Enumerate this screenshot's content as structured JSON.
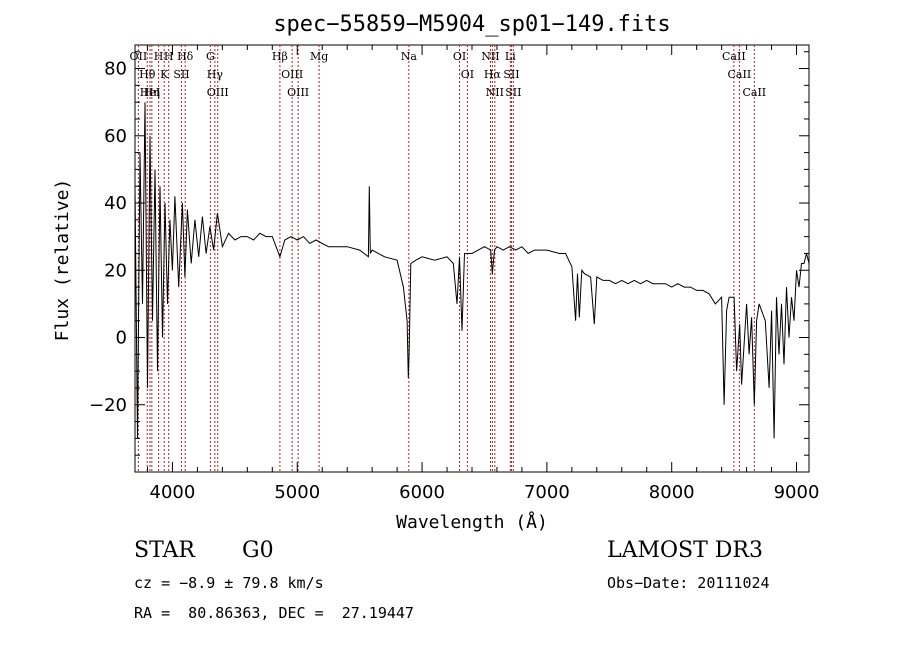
{
  "chart_data": {
    "type": "line",
    "title": "spec−55859−M5904_sp01−149.fits",
    "xlabel": "Wavelength (Å)",
    "ylabel": "Flux (relative)",
    "xlim": [
      3700,
      9100
    ],
    "ylim": [
      -40,
      87
    ],
    "x_ticks": [
      4000,
      5000,
      6000,
      7000,
      8000,
      9000
    ],
    "x_tick_labels": [
      "4000",
      "5000",
      "6000",
      "7000",
      "8000",
      "9000"
    ],
    "y_ticks": [
      -20,
      0,
      20,
      40,
      60,
      80
    ],
    "y_tick_labels": [
      "−20",
      "0",
      "20",
      "40",
      "60",
      "80"
    ],
    "series": [
      {
        "name": "flux",
        "x": [
          3700,
          3720,
          3740,
          3760,
          3780,
          3800,
          3820,
          3840,
          3860,
          3880,
          3900,
          3920,
          3940,
          3960,
          3980,
          4000,
          4020,
          4050,
          4080,
          4100,
          4120,
          4150,
          4180,
          4210,
          4240,
          4270,
          4300,
          4330,
          4360,
          4400,
          4450,
          4500,
          4550,
          4600,
          4650,
          4700,
          4750,
          4800,
          4861,
          4900,
          4950,
          5000,
          5050,
          5100,
          5150,
          5200,
          5250,
          5300,
          5400,
          5500,
          5570,
          5577,
          5585,
          5600,
          5700,
          5800,
          5850,
          5880,
          5890,
          5896,
          5910,
          5950,
          6000,
          6100,
          6200,
          6250,
          6280,
          6300,
          6320,
          6340,
          6400,
          6450,
          6500,
          6550,
          6563,
          6580,
          6600,
          6650,
          6700,
          6750,
          6800,
          6850,
          6900,
          6950,
          7000,
          7100,
          7150,
          7200,
          7230,
          7245,
          7260,
          7280,
          7300,
          7350,
          7380,
          7400,
          7450,
          7500,
          7550,
          7600,
          7650,
          7700,
          7750,
          7800,
          7850,
          7900,
          7950,
          8000,
          8050,
          8100,
          8150,
          8200,
          8250,
          8300,
          8350,
          8400,
          8420,
          8440,
          8460,
          8500,
          8520,
          8545,
          8560,
          8600,
          8620,
          8640,
          8662,
          8680,
          8700,
          8750,
          8780,
          8800,
          8820,
          8840,
          8860,
          8880,
          8900,
          8920,
          8940,
          8960,
          8980,
          9000,
          9020,
          9040,
          9060,
          9080,
          9100
        ],
        "values": [
          45,
          -30,
          55,
          10,
          70,
          -15,
          60,
          5,
          50,
          -10,
          45,
          0,
          40,
          10,
          35,
          20,
          42,
          15,
          40,
          18,
          38,
          22,
          35,
          24,
          36,
          25,
          33,
          26,
          37,
          27,
          31,
          29,
          30,
          30,
          29,
          31,
          30,
          30,
          24,
          29,
          30,
          29,
          30,
          28,
          29,
          28,
          27,
          27,
          27,
          26,
          24,
          45,
          25,
          26,
          24,
          23,
          15,
          5,
          -12,
          -5,
          22,
          23,
          24,
          23,
          24,
          22,
          10,
          24,
          2,
          25,
          25,
          26,
          27,
          26,
          19,
          26,
          27,
          26,
          27,
          26,
          27,
          25,
          26,
          26,
          26,
          25,
          25,
          21,
          5,
          19,
          6,
          20,
          19,
          18,
          4,
          18,
          17,
          17,
          16,
          17,
          16,
          17,
          16,
          17,
          16,
          16,
          16,
          15,
          16,
          15,
          15,
          14,
          14,
          13,
          10,
          12,
          -20,
          8,
          12,
          12,
          -10,
          4,
          -14,
          10,
          -5,
          6,
          -20,
          5,
          10,
          5,
          -15,
          8,
          -30,
          12,
          -5,
          10,
          -8,
          15,
          0,
          12,
          5,
          20,
          15,
          22,
          22,
          25,
          22
        ]
      }
    ],
    "emission_lines": [
      {
        "wavelength": 3727,
        "label": "OII"
      },
      {
        "wavelength": 3798,
        "label": "Hθ"
      },
      {
        "wavelength": 3820,
        "label": "HeI"
      },
      {
        "wavelength": 3835,
        "label": "Hη"
      },
      {
        "wavelength": 3889,
        "label": "H"
      },
      {
        "wavelength": 3934,
        "label": "K"
      },
      {
        "wavelength": 3970,
        "label": "H"
      },
      {
        "wavelength": 4072,
        "label": "SII"
      },
      {
        "wavelength": 4102,
        "label": "Hδ"
      },
      {
        "wavelength": 4304,
        "label": "G"
      },
      {
        "wavelength": 4340,
        "label": "Hγ"
      },
      {
        "wavelength": 4363,
        "label": "OIII"
      },
      {
        "wavelength": 4861,
        "label": "Hβ"
      },
      {
        "wavelength": 4959,
        "label": "OIII"
      },
      {
        "wavelength": 5007,
        "label": "OIII"
      },
      {
        "wavelength": 5175,
        "label": "Mg"
      },
      {
        "wavelength": 5894,
        "label": "Na"
      },
      {
        "wavelength": 6300,
        "label": "OI"
      },
      {
        "wavelength": 6363,
        "label": "OI"
      },
      {
        "wavelength": 6548,
        "label": "NII"
      },
      {
        "wavelength": 6563,
        "label": "Hα"
      },
      {
        "wavelength": 6583,
        "label": "NII"
      },
      {
        "wavelength": 6707,
        "label": "Li"
      },
      {
        "wavelength": 6716,
        "label": "SII"
      },
      {
        "wavelength": 6731,
        "label": "SII"
      },
      {
        "wavelength": 8498,
        "label": "CaII"
      },
      {
        "wavelength": 8542,
        "label": "CaII"
      },
      {
        "wavelength": 8662,
        "label": "CaII"
      }
    ],
    "grid": false,
    "colors": {
      "spectrum": "#000000",
      "lines": "#b22222",
      "axes": "#000000"
    }
  },
  "info": {
    "object_class": "STAR",
    "subclass": "G0",
    "survey": "LAMOST DR3",
    "redshift_text": "cz = −8.9 ± 79.8 km/s",
    "obs_date_text": "Obs−Date: 20111024",
    "coords_text": "RA =  80.86363, DEC =  27.19447"
  }
}
